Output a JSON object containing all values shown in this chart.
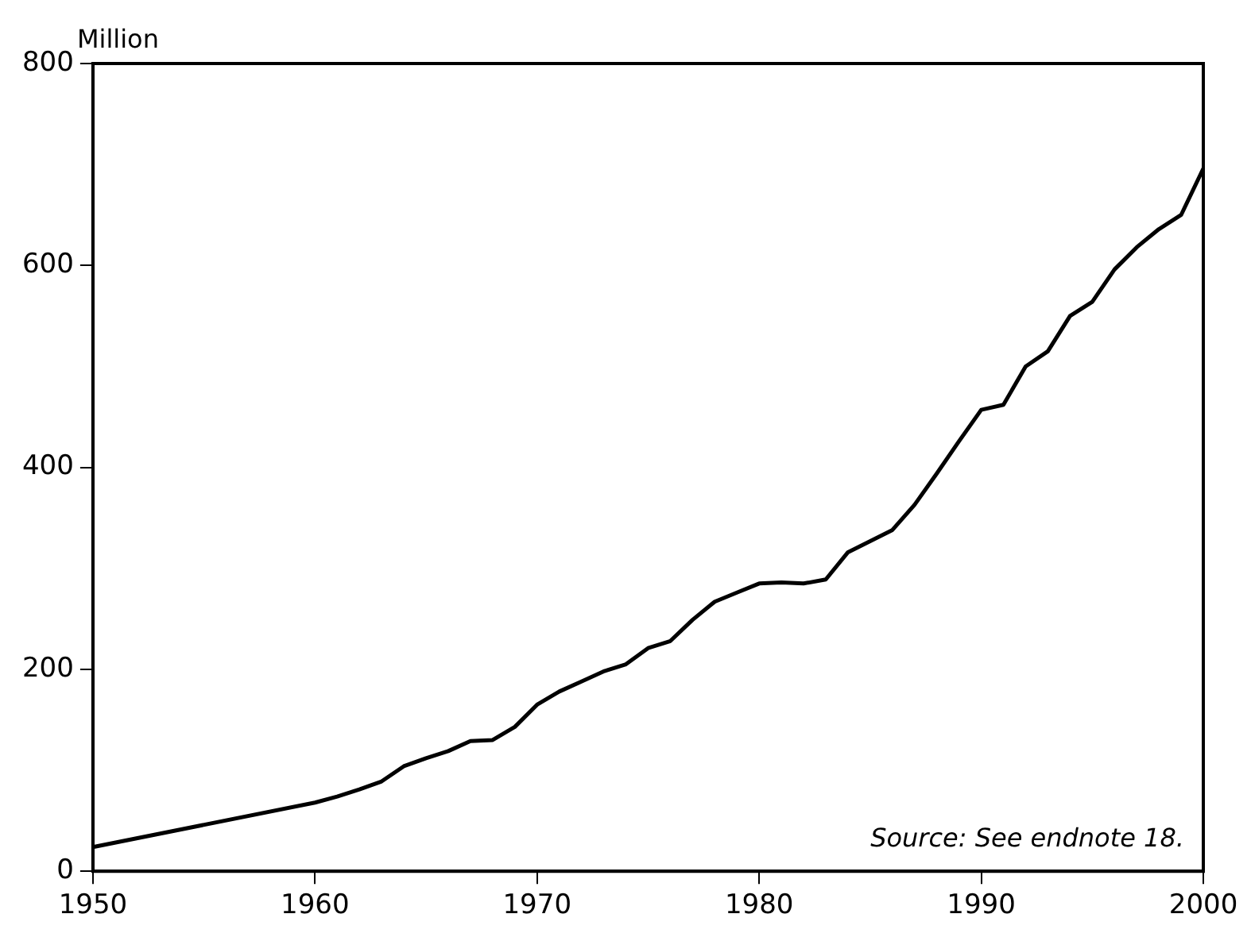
{
  "chart_data": {
    "type": "line",
    "ylabel": "Million",
    "annotations": [
      "Source: See endnote 18."
    ],
    "x": [
      1950,
      1960,
      1961,
      1962,
      1963,
      1964,
      1965,
      1966,
      1967,
      1968,
      1969,
      1970,
      1971,
      1972,
      1973,
      1974,
      1975,
      1976,
      1977,
      1978,
      1979,
      1980,
      1981,
      1982,
      1983,
      1984,
      1985,
      1986,
      1987,
      1988,
      1989,
      1990,
      1991,
      1992,
      1993,
      1994,
      1995,
      1996,
      1997,
      1998,
      1999,
      2000
    ],
    "series": [
      {
        "color": "#000000",
        "values": [
          24,
          68,
          74,
          81,
          89,
          104,
          112,
          119,
          129,
          130,
          143,
          165,
          178,
          188,
          198,
          205,
          221,
          228,
          249,
          267,
          276,
          285,
          286,
          285,
          289,
          316,
          327,
          338,
          363,
          394,
          426,
          457,
          462,
          500,
          515,
          550,
          564,
          596,
          618,
          636,
          650,
          696
        ]
      }
    ],
    "xlim": [
      1950,
      2000
    ],
    "xticks": [
      1950,
      1960,
      1970,
      1980,
      1990,
      2000
    ],
    "ylim": [
      0,
      800
    ],
    "yticks": [
      0,
      200,
      400,
      600,
      800
    ],
    "grid": false,
    "legend": false,
    "marker": "none",
    "line_style": "solid"
  }
}
